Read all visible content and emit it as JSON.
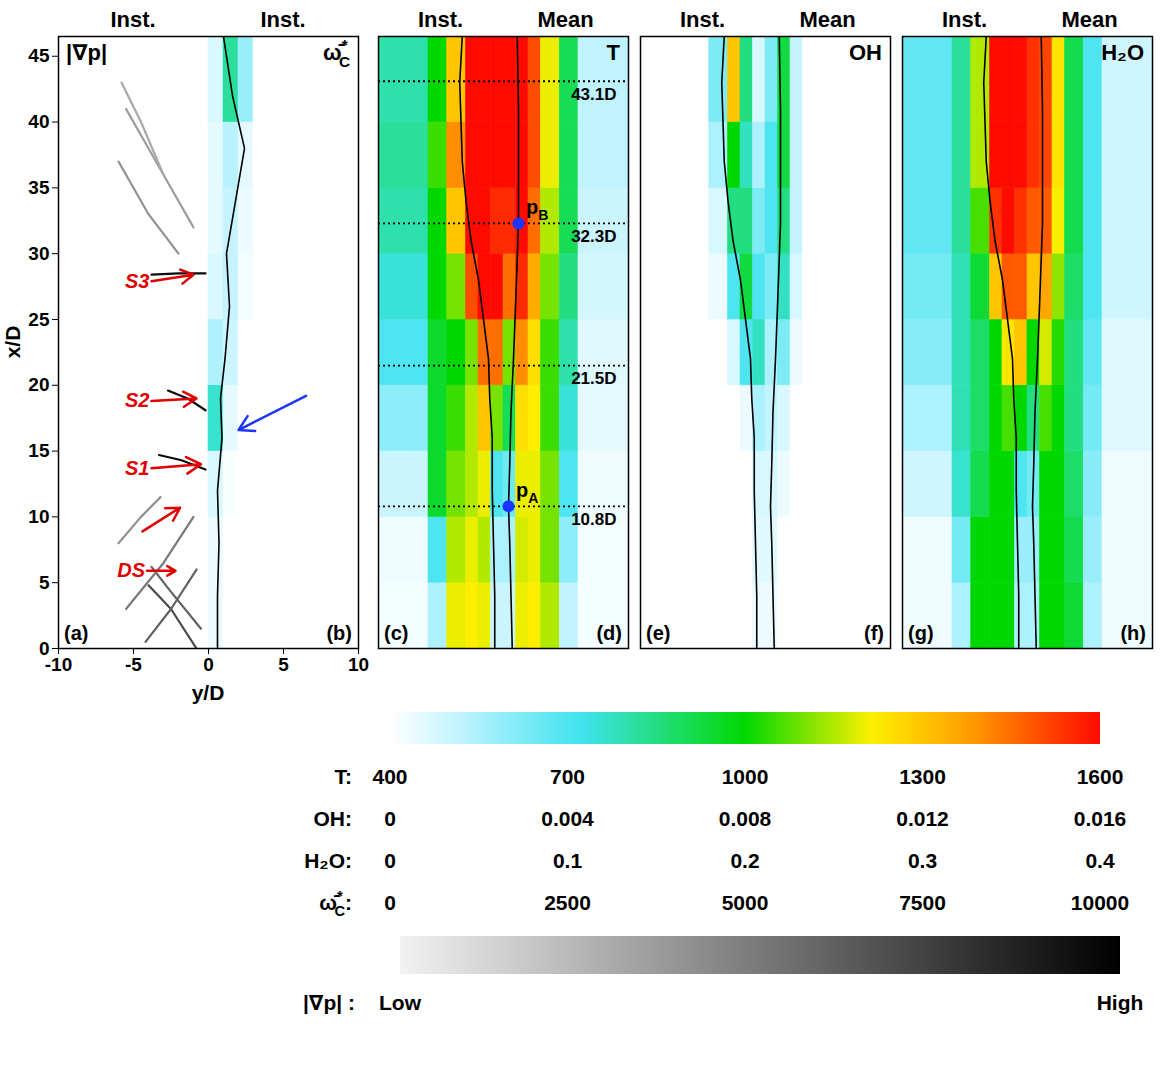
{
  "chart_data": [
    {
      "type": "heatmap",
      "xlabel": "y/D",
      "ylabel": "x/D",
      "xlim": [
        -10,
        10
      ],
      "ylim": [
        0,
        46.5
      ],
      "xticks": [
        -10,
        -5,
        0,
        5,
        10
      ],
      "yticks": [
        0,
        5,
        10,
        15,
        20,
        25,
        30,
        35,
        40,
        45
      ],
      "halves": [
        {
          "panel": "(a)",
          "header": "Inst.",
          "label": "|∇p|"
        },
        {
          "panel": "(b)",
          "header": "Inst.",
          "label": {
            "text": "ω̄̇",
            "sup": "*",
            "sub": "C"
          }
        }
      ],
      "shocks": [
        {
          "x": [
            -0.8,
            -2.5,
            -4.0
          ],
          "y": [
            0,
            3,
            4.8
          ],
          "value": 0.7
        },
        {
          "x": [
            -0.5,
            -2.5,
            -3.8
          ],
          "y": [
            1.5,
            4.3,
            6.2
          ],
          "value": 0.6
        },
        {
          "x": [
            -4.2,
            -2.5,
            -0.8
          ],
          "y": [
            0.5,
            3,
            6
          ],
          "value": 0.6
        },
        {
          "x": [
            -5.5,
            -3,
            -1
          ],
          "y": [
            3,
            6.5,
            10
          ],
          "value": 0.5
        },
        {
          "x": [
            -6,
            -4.5,
            -3.2
          ],
          "y": [
            8,
            10,
            11.5
          ],
          "value": 0.4
        },
        {
          "x": [
            -3.3,
            -1.8,
            -0.2
          ],
          "y": [
            14.7,
            14.3,
            13.6
          ],
          "value": 0.95
        },
        {
          "x": [
            -2.7,
            -1.4,
            -0.2
          ],
          "y": [
            19.6,
            19,
            18.1
          ],
          "value": 0.95
        },
        {
          "x": [
            -3.8,
            -2,
            -0.2
          ],
          "y": [
            28.4,
            28.5,
            28.5
          ],
          "value": 0.95
        },
        {
          "x": [
            -2,
            -4,
            -6
          ],
          "y": [
            30,
            33,
            37
          ],
          "value": 0.4
        },
        {
          "x": [
            -1,
            -3,
            -5.5
          ],
          "y": [
            32,
            36,
            41
          ],
          "value": 0.35
        },
        {
          "x": [
            -3,
            -4.5,
            -5.8
          ],
          "y": [
            36,
            40,
            43
          ],
          "value": 0.3
        }
      ],
      "annotations": [
        {
          "text": "S3",
          "color": "#e00000",
          "x1": -3.8,
          "y1": 27.9,
          "x2": -1.0,
          "y2": 28.4
        },
        {
          "text": "S2",
          "color": "#e00000",
          "x1": -3.8,
          "y1": 18.8,
          "x2": -0.8,
          "y2": 19.0
        },
        {
          "text": "S1",
          "color": "#e00000",
          "x1": -3.8,
          "y1": 13.7,
          "x2": -0.5,
          "y2": 14.0
        },
        {
          "color": "#e00000",
          "x1": -4.4,
          "y1": 8.9,
          "x2": -1.9,
          "y2": 10.7
        },
        {
          "text": "DS",
          "color": "#e00000",
          "x1": -4.1,
          "y1": 5.9,
          "x2": -2.2,
          "y2": 5.9
        },
        {
          "color": "#1a35ff",
          "x1": 6.5,
          "y1": 19.2,
          "x2": 2.0,
          "y2": 16.6
        }
      ],
      "clim": [
        0,
        10000
      ],
      "x_edges": [
        0,
        1,
        2,
        3,
        4.5,
        6,
        10
      ],
      "y_edges": [
        0,
        5,
        10,
        15,
        20,
        25,
        30,
        35,
        40,
        46.5
      ],
      "cells": [
        [
          300,
          0,
          0,
          0,
          0,
          0
        ],
        [
          300,
          0,
          0,
          0,
          0,
          0
        ],
        [
          600,
          100,
          0,
          0,
          0,
          0
        ],
        [
          3000,
          400,
          0,
          0,
          0,
          0
        ],
        [
          1200,
          800,
          0,
          0,
          0,
          0
        ],
        [
          600,
          900,
          200,
          0,
          0,
          0
        ],
        [
          400,
          900,
          300,
          0,
          0,
          0
        ],
        [
          400,
          1100,
          400,
          0,
          0,
          0
        ],
        [
          600,
          3500,
          1500,
          0,
          0,
          0
        ]
      ],
      "contours": [
        {
          "x": [
            0.6,
            0.6,
            0.7,
            0.6,
            0.9,
            0.8,
            1.1,
            1.4,
            1.2,
            1.8,
            2.4,
            1.6,
            1.0
          ],
          "y": [
            0,
            4,
            8,
            12,
            16,
            19,
            22,
            26,
            30,
            34,
            38,
            42,
            46.5
          ]
        }
      ]
    },
    {
      "type": "heatmap",
      "xlim": [
        -10,
        10
      ],
      "ylim": [
        0,
        46.5
      ],
      "tick_labels": false,
      "halves": [
        {
          "panel": "(c)",
          "header": "Inst."
        },
        {
          "panel": "(d)",
          "header": "Mean",
          "label": "T"
        }
      ],
      "clim": [
        400,
        1600
      ],
      "x_edges": [
        -10,
        -6,
        -4.5,
        -3,
        -2,
        -1,
        0,
        1,
        2,
        3,
        4.5,
        6,
        10
      ],
      "y_edges": [
        0,
        5,
        10,
        15,
        20,
        25,
        30,
        35,
        40,
        46.5
      ],
      "cells": [
        [
          420,
          550,
          1200,
          1220,
          1200,
          500,
          500,
          1200,
          1220,
          1150,
          520,
          420
        ],
        [
          430,
          700,
          1150,
          1200,
          1150,
          550,
          550,
          1180,
          1200,
          1100,
          600,
          420
        ],
        [
          500,
          950,
          1100,
          1150,
          1200,
          700,
          650,
          1200,
          1200,
          1100,
          700,
          430
        ],
        [
          600,
          950,
          1050,
          1150,
          1300,
          1100,
          900,
          1250,
          1220,
          1050,
          750,
          450
        ],
        [
          700,
          950,
          1000,
          1100,
          1450,
          1450,
          1100,
          1400,
          1250,
          1050,
          800,
          460
        ],
        [
          750,
          1000,
          1100,
          1500,
          1600,
          1600,
          1450,
          1550,
          1350,
          1100,
          850,
          480
        ],
        [
          800,
          1000,
          1300,
          1600,
          1600,
          1550,
          1550,
          1600,
          1450,
          1150,
          900,
          500
        ],
        [
          820,
          1050,
          1400,
          1600,
          1600,
          1600,
          1600,
          1600,
          1500,
          1200,
          900,
          520
        ],
        [
          800,
          1000,
          1300,
          1600,
          1600,
          1600,
          1600,
          1600,
          1500,
          1200,
          900,
          520
        ]
      ],
      "contours": [
        {
          "x": [
            -0.7,
            -0.7,
            -0.8,
            -0.9,
            -0.9,
            -1.1,
            -1.2,
            -1.6,
            -2.0,
            -2.6,
            -3.0,
            -3.3,
            -3.4,
            -3.5,
            -3.3
          ],
          "y": [
            0,
            4,
            8,
            12,
            16,
            19,
            22,
            25,
            28,
            31,
            34,
            37,
            40,
            43,
            46.5
          ]
        },
        {
          "x": [
            0.7,
            0.6,
            0.5,
            0.4,
            0.5,
            0.6,
            0.8,
            1.0,
            1.2,
            1.2,
            1.2,
            1.1
          ],
          "y": [
            0,
            4,
            8,
            10.8,
            14,
            18,
            22,
            27,
            32.3,
            36,
            41,
            46.5
          ]
        }
      ],
      "lines": [
        {
          "value": 43.1,
          "label": "43.1D"
        },
        {
          "value": 32.3,
          "label": "32.3D"
        },
        {
          "value": 21.5,
          "label": "21.5D"
        },
        {
          "value": 10.8,
          "label": "10.8D"
        }
      ],
      "points": [
        {
          "label": {
            "text": "p",
            "sub": "A"
          },
          "x": 0.4,
          "y": 10.8
        },
        {
          "label": {
            "text": "p",
            "sub": "B"
          },
          "x": 1.2,
          "y": 32.3
        }
      ]
    },
    {
      "type": "heatmap",
      "xlim": [
        -10,
        10
      ],
      "ylim": [
        0,
        46.5
      ],
      "tick_labels": false,
      "halves": [
        {
          "panel": "(e)",
          "header": "Inst."
        },
        {
          "panel": "(f)",
          "header": "Mean",
          "label": "OH"
        }
      ],
      "clim": [
        0,
        0.016
      ],
      "x_edges": [
        -10,
        -6,
        -4.5,
        -3,
        -2,
        -1,
        0,
        1,
        2,
        3,
        4.5,
        6,
        10
      ],
      "y_edges": [
        0,
        5,
        10,
        15,
        20,
        25,
        30,
        35,
        40,
        46.5
      ],
      "cells": [
        [
          0,
          0,
          0,
          0,
          0,
          0.0005,
          0.0005,
          0,
          0,
          0,
          0,
          0
        ],
        [
          0,
          0,
          0,
          0,
          0,
          0.0008,
          0.0008,
          0,
          0,
          0,
          0,
          0
        ],
        [
          0,
          0,
          0,
          0,
          0,
          0.001,
          0.001,
          0.0005,
          0,
          0,
          0,
          0
        ],
        [
          0,
          0,
          0,
          0,
          0.0005,
          0.002,
          0.0015,
          0.001,
          0,
          0,
          0,
          0
        ],
        [
          0,
          0,
          0,
          0.001,
          0.004,
          0.005,
          0.002,
          0.003,
          0.0005,
          0,
          0,
          0
        ],
        [
          0,
          0,
          0.0005,
          0.004,
          0.007,
          0.004,
          0.003,
          0.005,
          0.001,
          0,
          0,
          0
        ],
        [
          0,
          0,
          0.001,
          0.006,
          0.006,
          0.003,
          0.004,
          0.006,
          0.0015,
          0,
          0,
          0
        ],
        [
          0,
          0,
          0.002,
          0.008,
          0.005,
          0.002,
          0.004,
          0.007,
          0.0015,
          0,
          0,
          0
        ],
        [
          0,
          0,
          0.003,
          0.012,
          0.006,
          0.001,
          0.003,
          0.007,
          0.0015,
          0,
          0,
          0
        ]
      ],
      "contours": [
        {
          "x": [
            -0.7,
            -0.7,
            -0.8,
            -0.9,
            -0.9,
            -1.1,
            -1.2,
            -1.6,
            -2.0,
            -2.6,
            -3.0,
            -3.3,
            -3.4,
            -3.5,
            -3.3
          ],
          "y": [
            0,
            4,
            8,
            12,
            16,
            19,
            22,
            25,
            28,
            31,
            34,
            37,
            40,
            43,
            46.5
          ]
        },
        {
          "x": [
            0.7,
            0.6,
            0.5,
            0.4,
            0.5,
            0.6,
            0.8,
            1.0,
            1.2,
            1.2,
            1.2,
            1.1
          ],
          "y": [
            0,
            4,
            8,
            10.8,
            14,
            18,
            22,
            27,
            32.3,
            36,
            41,
            46.5
          ]
        }
      ]
    },
    {
      "type": "heatmap",
      "xlim": [
        -10,
        10
      ],
      "ylim": [
        0,
        46.5
      ],
      "tick_labels": false,
      "halves": [
        {
          "panel": "(g)",
          "header": "Inst."
        },
        {
          "panel": "(h)",
          "header": "Mean",
          "label": "H₂O"
        }
      ],
      "clim": [
        0,
        0.4
      ],
      "x_edges": [
        -10,
        -6,
        -4.5,
        -3,
        -2,
        -1,
        0,
        1,
        2,
        3,
        4.5,
        6,
        10
      ],
      "y_edges": [
        0,
        5,
        10,
        15,
        20,
        25,
        30,
        35,
        40,
        46.5
      ],
      "cells": [
        [
          0.01,
          0.05,
          0.2,
          0.2,
          0.2,
          0.05,
          0.05,
          0.2,
          0.2,
          0.18,
          0.05,
          0.01
        ],
        [
          0.01,
          0.08,
          0.2,
          0.2,
          0.2,
          0.06,
          0.06,
          0.2,
          0.2,
          0.17,
          0.06,
          0.01
        ],
        [
          0.03,
          0.12,
          0.17,
          0.2,
          0.2,
          0.1,
          0.08,
          0.2,
          0.2,
          0.16,
          0.07,
          0.01
        ],
        [
          0.05,
          0.13,
          0.16,
          0.2,
          0.22,
          0.2,
          0.15,
          0.22,
          0.2,
          0.15,
          0.08,
          0.02
        ],
        [
          0.07,
          0.13,
          0.16,
          0.2,
          0.28,
          0.3,
          0.2,
          0.26,
          0.21,
          0.15,
          0.09,
          0.02
        ],
        [
          0.08,
          0.13,
          0.18,
          0.3,
          0.36,
          0.36,
          0.3,
          0.32,
          0.24,
          0.16,
          0.1,
          0.03
        ],
        [
          0.09,
          0.14,
          0.22,
          0.38,
          0.4,
          0.38,
          0.36,
          0.36,
          0.27,
          0.17,
          0.1,
          0.03
        ],
        [
          0.09,
          0.14,
          0.25,
          0.4,
          0.4,
          0.4,
          0.38,
          0.37,
          0.28,
          0.17,
          0.1,
          0.03
        ],
        [
          0.09,
          0.14,
          0.25,
          0.4,
          0.4,
          0.4,
          0.38,
          0.37,
          0.28,
          0.17,
          0.1,
          0.03
        ]
      ],
      "contours": [
        {
          "x": [
            -0.7,
            -0.7,
            -0.8,
            -0.9,
            -0.9,
            -1.1,
            -1.2,
            -1.6,
            -2.0,
            -2.6,
            -3.0,
            -3.3,
            -3.4,
            -3.5,
            -3.3
          ],
          "y": [
            0,
            4,
            8,
            12,
            16,
            19,
            22,
            25,
            28,
            31,
            34,
            37,
            40,
            43,
            46.5
          ]
        },
        {
          "x": [
            0.7,
            0.6,
            0.5,
            0.4,
            0.5,
            0.6,
            0.8,
            1.0,
            1.2,
            1.2,
            1.2,
            1.1
          ],
          "y": [
            0,
            4,
            8,
            10.8,
            14,
            18,
            22,
            27,
            32.3,
            36,
            41,
            46.5
          ]
        }
      ]
    },
    {
      "type": "colorbar",
      "rows": [
        {
          "label": "T:",
          "range": [
            400,
            1600
          ],
          "ticks": [
            400,
            700,
            1000,
            1300,
            1600
          ]
        },
        {
          "label": "OH:",
          "range": [
            0,
            0.016
          ],
          "ticks": [
            0,
            0.004,
            0.008,
            0.012,
            0.016
          ]
        },
        {
          "label": "H₂O:",
          "range": [
            0,
            0.4
          ],
          "ticks": [
            0,
            0.1,
            0.2,
            0.3,
            0.4
          ]
        },
        {
          "label": {
            "text": "ω̄̇",
            "sup": "*",
            "sub": "C",
            "tail": ":"
          },
          "range": [
            0,
            10000
          ],
          "ticks": [
            0,
            2500,
            5000,
            7500,
            10000
          ]
        }
      ]
    },
    {
      "type": "colorbar",
      "label": "|∇p| :",
      "range": [
        0,
        1
      ],
      "ticks": [
        {
          "value": 0,
          "label": "Low"
        },
        {
          "value": 1,
          "label": "High"
        }
      ]
    }
  ]
}
